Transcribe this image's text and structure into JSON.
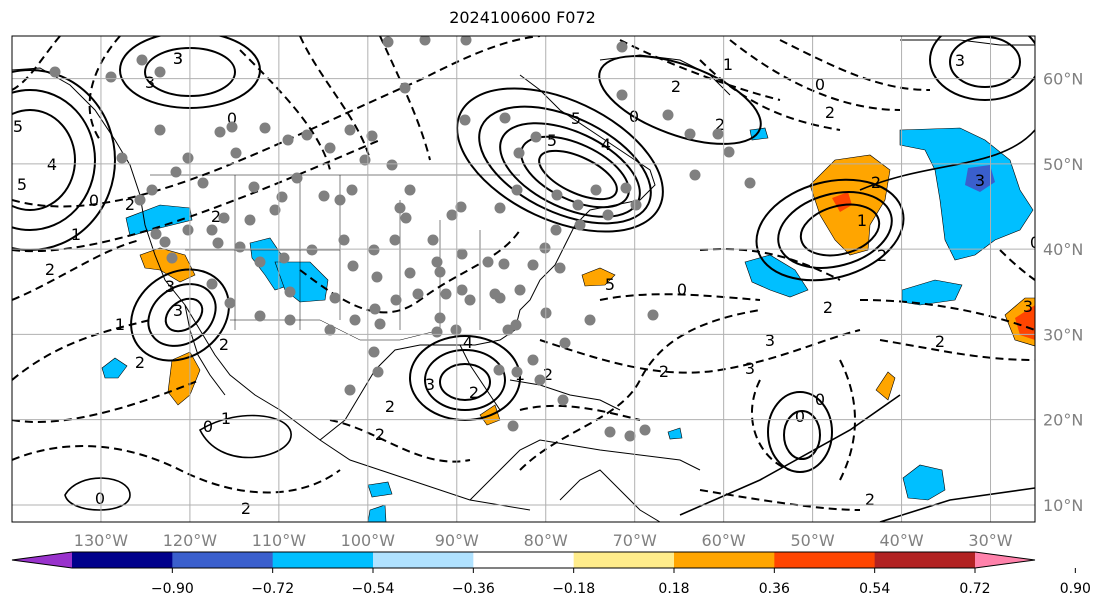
{
  "title": "2024100600 F072",
  "map": {
    "lon_range": [
      -140,
      -25
    ],
    "lat_range": [
      8,
      65
    ],
    "lon_ticks": [
      "130°W",
      "120°W",
      "110°W",
      "100°W",
      "90°W",
      "80°W",
      "70°W",
      "60°W",
      "50°W",
      "40°W",
      "30°W"
    ],
    "lat_ticks": [
      "60°N",
      "50°N",
      "40°N",
      "30°N",
      "20°N",
      "10°N"
    ],
    "contour_labels": [
      "3",
      "3",
      "5",
      "5",
      "4",
      "2",
      "1",
      "0",
      "2",
      "2",
      "1",
      "3",
      "3",
      "5",
      "5",
      "4",
      "4",
      "3",
      "2",
      "0",
      "2",
      "2",
      "1",
      "0",
      "0",
      "2",
      "2",
      "2",
      "1",
      "2",
      "2",
      "3",
      "3",
      "5",
      "0",
      "2",
      "2",
      "1",
      "2",
      "3",
      "3",
      "2",
      "0",
      "0",
      "2",
      "3",
      "2",
      "2",
      "0",
      "1",
      "2",
      "0",
      "0",
      "3"
    ]
  },
  "colorbar": {
    "colors": [
      "#9932cc",
      "#00008b",
      "#3a5fcd",
      "#00bfff",
      "#b0e2ff",
      "#ffffff",
      "#ffec8b",
      "#ffa500",
      "#ff4500",
      "#b22222",
      "#ff82ab"
    ],
    "tick_labels": [
      "−0.90",
      "−0.72",
      "−0.54",
      "−0.36",
      "−0.18",
      "0.18",
      "0.36",
      "0.54",
      "0.72",
      "0.90"
    ]
  }
}
